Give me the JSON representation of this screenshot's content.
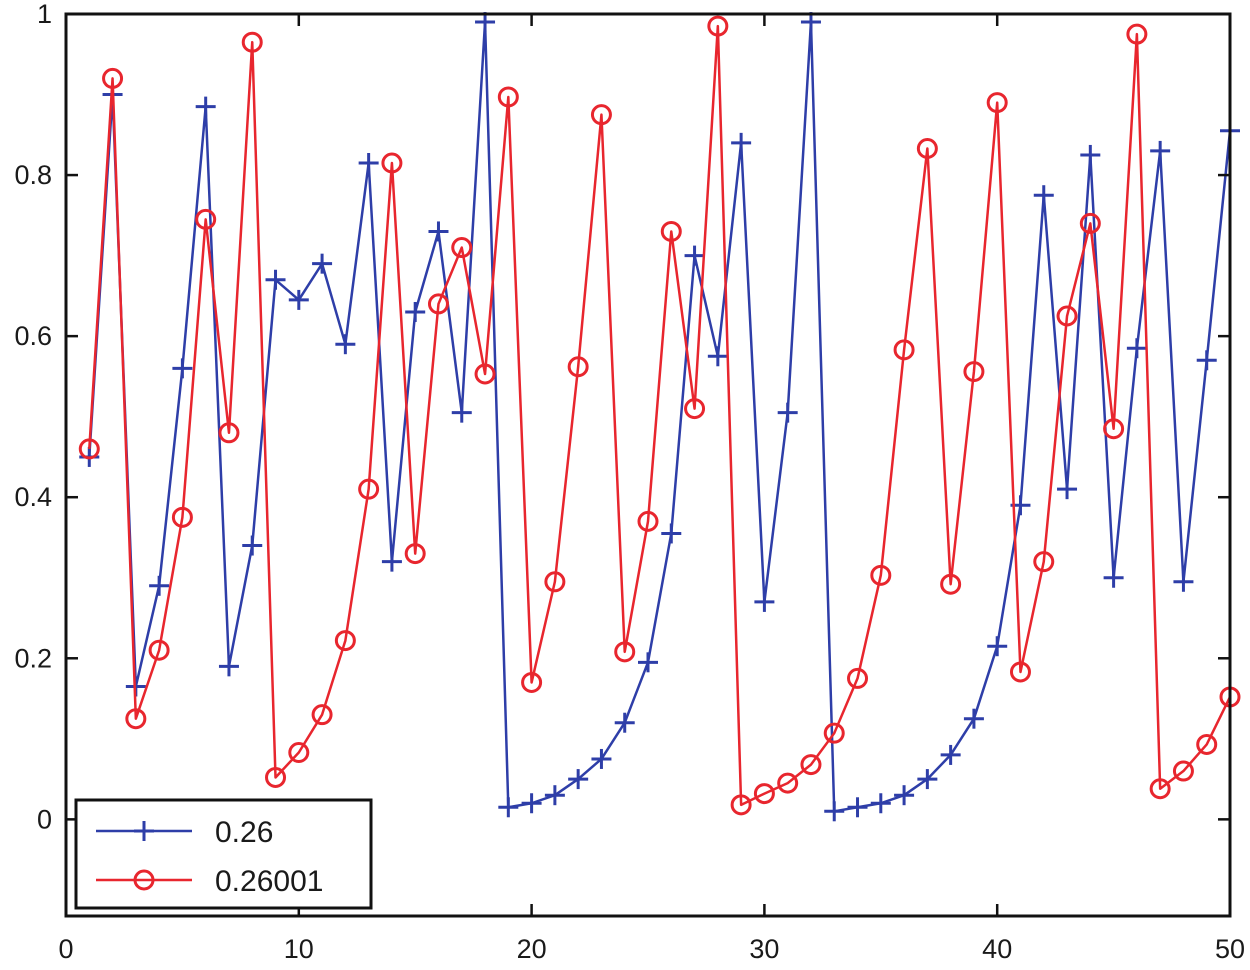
{
  "chart_data": {
    "type": "line",
    "title": "",
    "xlabel": "",
    "ylabel": "",
    "xlim": [
      0,
      50
    ],
    "ylim": [
      -0.12,
      1.0
    ],
    "xticks": [
      0,
      10,
      20,
      30,
      40,
      50
    ],
    "yticks": [
      0,
      0.2,
      0.4,
      0.6,
      0.8,
      1
    ],
    "x_tick_labels": [
      "0",
      "10",
      "20",
      "30",
      "40",
      "50"
    ],
    "y_tick_labels": [
      "0",
      "0.2",
      "0.4",
      "0.6",
      "0.8",
      "1"
    ],
    "grid": false,
    "legend_position": "bottom-left",
    "x": [
      1,
      2,
      3,
      4,
      5,
      6,
      7,
      8,
      9,
      10,
      11,
      12,
      13,
      14,
      15,
      16,
      17,
      18,
      19,
      20,
      21,
      22,
      23,
      24,
      25,
      26,
      27,
      28,
      29,
      30,
      31,
      32,
      33,
      34,
      35,
      36,
      37,
      38,
      39,
      40,
      41,
      42,
      43,
      44,
      45,
      46,
      47,
      48,
      49,
      50
    ],
    "series": [
      {
        "name": "0.26",
        "color": "#2e3ea8",
        "marker": "plus",
        "values": [
          0.45,
          0.9,
          0.165,
          0.29,
          0.56,
          0.885,
          0.19,
          0.34,
          0.67,
          0.645,
          0.69,
          0.59,
          0.815,
          0.32,
          0.63,
          0.73,
          0.505,
          0.99,
          0.015,
          0.02,
          0.03,
          0.05,
          0.075,
          0.12,
          0.195,
          0.355,
          0.7,
          0.575,
          0.84,
          0.27,
          0.505,
          0.99,
          0.01,
          0.015,
          0.02,
          0.03,
          0.05,
          0.08,
          0.125,
          0.215,
          0.39,
          0.775,
          0.41,
          0.825,
          0.3,
          0.585,
          0.83,
          0.295,
          0.57,
          0.855
        ]
      },
      {
        "name": "0.26001",
        "color": "#e8262e",
        "marker": "circle",
        "values": [
          0.46,
          0.92,
          0.125,
          0.21,
          0.375,
          0.745,
          0.48,
          0.965,
          0.052,
          0.083,
          0.13,
          0.222,
          0.41,
          0.815,
          0.33,
          0.64,
          0.71,
          0.553,
          0.897,
          0.17,
          0.295,
          0.562,
          0.875,
          0.208,
          0.37,
          0.73,
          0.51,
          0.985,
          0.018,
          0.032,
          0.045,
          0.068,
          0.107,
          0.175,
          0.303,
          0.583,
          0.833,
          0.292,
          0.556,
          0.89,
          0.183,
          0.32,
          0.625,
          0.74,
          0.485,
          0.975,
          0.038,
          0.06,
          0.093,
          0.152
        ]
      }
    ]
  }
}
